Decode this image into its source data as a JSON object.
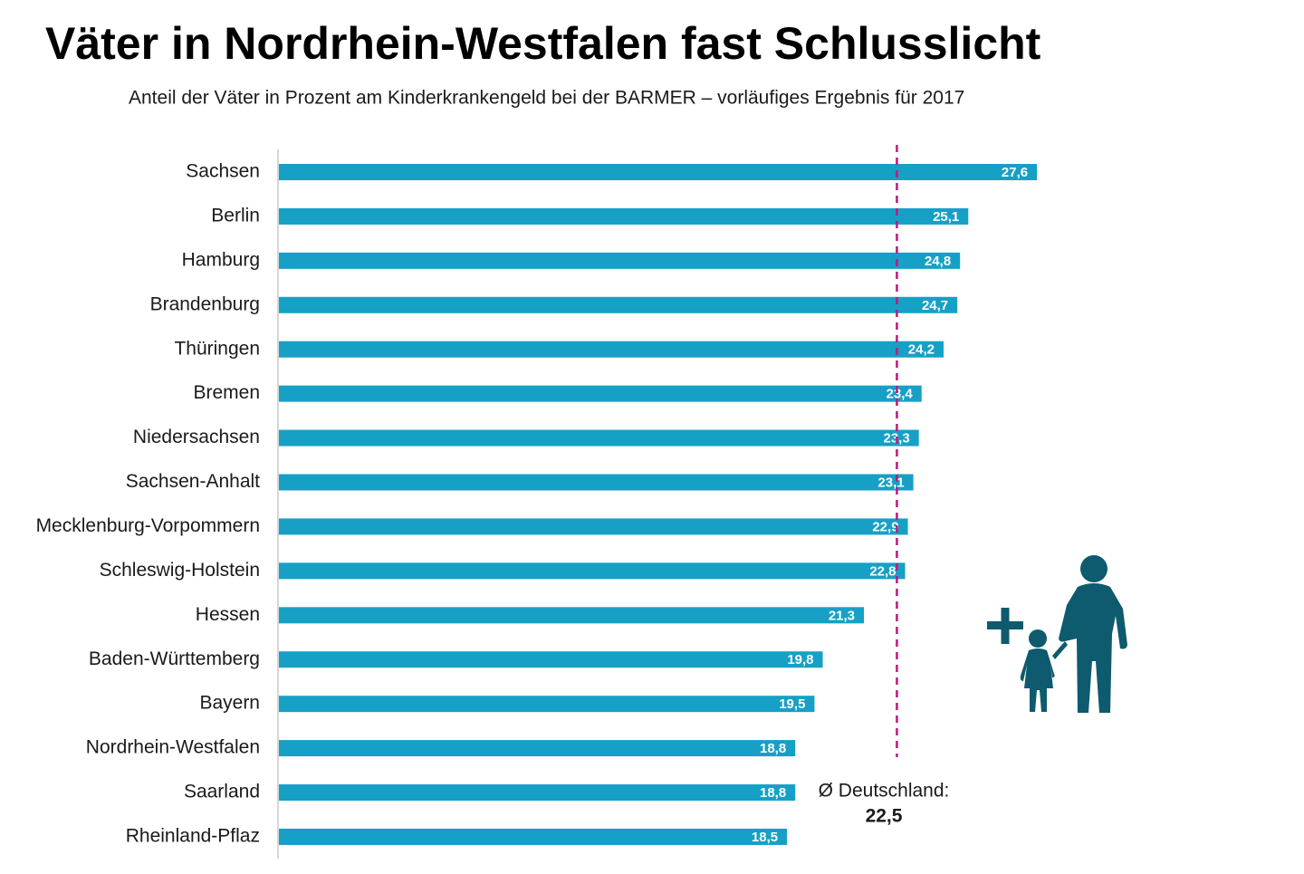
{
  "chart_data": {
    "type": "bar",
    "orientation": "horizontal",
    "title": "Väter in Nordrhein-Westfalen fast Schlusslicht",
    "subtitle": "Anteil der Väter in Prozent am Kinderkrankengeld bei der BARMER – vorläufiges Ergebnis für 2017",
    "categories": [
      "Sachsen",
      "Berlin",
      "Hamburg",
      "Brandenburg",
      "Thüringen",
      "Bremen",
      "Niedersachsen",
      "Sachsen-Anhalt",
      "Mecklenburg-Vorpommern",
      "Schleswig-Holstein",
      "Hessen",
      "Baden-Württemberg",
      "Bayern",
      "Nordrhein-Westfalen",
      "Saarland",
      "Rheinland-Pflaz"
    ],
    "values": [
      27.6,
      25.1,
      24.8,
      24.7,
      24.2,
      23.4,
      23.3,
      23.1,
      22.9,
      22.8,
      21.3,
      19.8,
      19.5,
      18.8,
      18.8,
      18.5
    ],
    "value_labels": [
      "27,6",
      "25,1",
      "24,8",
      "24,7",
      "24,2",
      "23,4",
      "23,3",
      "23,1",
      "22,9",
      "22,8",
      "21,3",
      "19,8",
      "19,5",
      "18,8",
      "18,8",
      "18,5"
    ],
    "color": "#16a0c6",
    "reference_line": {
      "value": 22.5,
      "label": "Ø Deutschland:",
      "value_label": "22,5",
      "color": "#c2177b"
    }
  }
}
